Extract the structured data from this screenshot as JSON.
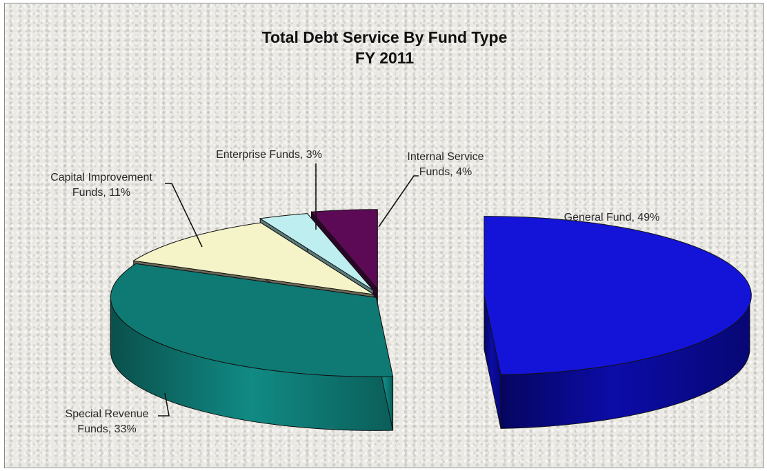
{
  "chart_data": {
    "type": "pie",
    "title": "Total Debt Service By Fund Type",
    "subtitle": "FY 2011",
    "slices": [
      {
        "label_lines": [
          "General Fund, 49%"
        ],
        "value": 49,
        "color": "#1414d8"
      },
      {
        "label_lines": [
          "Special Revenue",
          "Funds, 33%"
        ],
        "value": 33,
        "color": "#0f7a74"
      },
      {
        "label_lines": [
          "Capital Improvement",
          "Funds, 11%"
        ],
        "value": 11,
        "color": "#f5f3c8"
      },
      {
        "label_lines": [
          "Enterprise Funds, 3%"
        ],
        "value": 3,
        "color": "#bfeef0"
      },
      {
        "label_lines": [
          "Internal Service",
          "Funds, 4%"
        ],
        "value": 4,
        "color": "#5c0a55"
      }
    ],
    "exploded": true,
    "three_d": true,
    "legend": "none"
  }
}
